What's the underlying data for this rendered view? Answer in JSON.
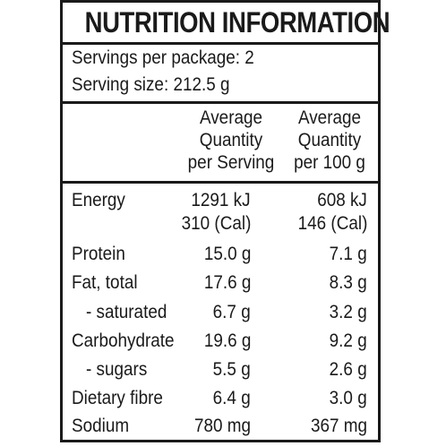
{
  "panel": {
    "title": "NUTRITION INFORMATION",
    "servings_per_package": "Servings per package: 2",
    "serving_size": "Serving size: 212.5 g",
    "col1_header": [
      "Average",
      "Quantity",
      "per Serving"
    ],
    "col2_header": [
      "Average",
      "Quantity",
      "per 100 g"
    ],
    "rows": [
      {
        "label": "Energy",
        "per_serving": "1291 kJ",
        "per_100g": "608 kJ"
      },
      {
        "label": "",
        "per_serving": "310 (Cal)",
        "per_100g": "146 (Cal)"
      },
      {
        "label": "Protein",
        "per_serving": "15.0 g",
        "per_100g": "7.1 g"
      },
      {
        "label": "Fat, total",
        "per_serving": "17.6 g",
        "per_100g": "8.3 g"
      },
      {
        "label": "- saturated",
        "per_serving": "6.7 g",
        "per_100g": "3.2 g"
      },
      {
        "label": "Carbohydrate",
        "per_serving": "19.6 g",
        "per_100g": "9.2 g"
      },
      {
        "label": "- sugars",
        "per_serving": "5.5 g",
        "per_100g": "2.6 g"
      },
      {
        "label": "Dietary fibre",
        "per_serving": "6.4 g",
        "per_100g": "3.0 g"
      },
      {
        "label": "Sodium",
        "per_serving": "780 mg",
        "per_100g": "367 mg"
      }
    ]
  }
}
